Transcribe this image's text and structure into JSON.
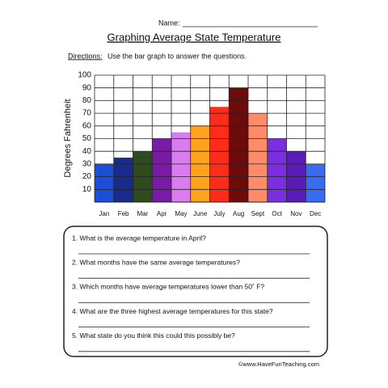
{
  "header": {
    "name_label": "Name:"
  },
  "title": "Graphing Average State Temperature",
  "directions": {
    "label": "Directions:",
    "text": "Use the bar graph to answer the questions."
  },
  "chart_data": {
    "type": "bar",
    "y_label": "Degrees Fahrenheit",
    "categories": [
      "Jan",
      "Feb",
      "Mar",
      "Apr",
      "May",
      "June",
      "July",
      "Aug",
      "Sept",
      "Oct",
      "Nov",
      "Dec"
    ],
    "values": [
      30,
      35,
      40,
      50,
      55,
      60,
      75,
      90,
      70,
      50,
      40,
      30
    ],
    "colors": [
      "#1c4fd8",
      "#1b2b8c",
      "#2e4a1f",
      "#7a1ba8",
      "#d97cf0",
      "#ffa31c",
      "#ff2b1b",
      "#6d0b0b",
      "#ff8b6b",
      "#7b2de0",
      "#5a1cb8",
      "#3b6cf0"
    ],
    "ylim": [
      0,
      100
    ],
    "yticks": [
      10,
      20,
      30,
      40,
      50,
      60,
      70,
      80,
      90,
      100
    ],
    "grid": true
  },
  "questions": [
    "1.  What is the average temperature in April?",
    "2.  What months have the same average temperatures?",
    "3.  Which months have average temperatures lower than 50˚ F?",
    "4.  What are the three highest average temperatures for this state?",
    "5.  What state do you think this could this possibly be?"
  ],
  "footer": "©www.HaveFunTeaching.com"
}
